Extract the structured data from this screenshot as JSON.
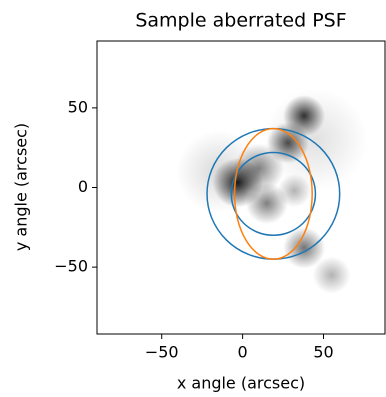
{
  "chart_data": {
    "type": "image",
    "title": "Sample aberrated PSF",
    "xlabel": "x angle (arcsec)",
    "ylabel": "y angle (arcsec)",
    "xlim": [
      -90,
      88
    ],
    "ylim": [
      -92,
      92
    ],
    "xticks": [
      {
        "value": -50,
        "label": "−50"
      },
      0,
      50
    ],
    "yticks": [
      {
        "value": -50,
        "label": "−50"
      },
      0,
      50
    ],
    "grid": false,
    "blobs": [
      {
        "x": -3,
        "y": 3,
        "size": 12,
        "intensity": 0.9
      },
      {
        "x": 38,
        "y": 45,
        "size": 10,
        "intensity": 0.8
      },
      {
        "x": 28,
        "y": 28,
        "size": 10,
        "intensity": 0.7
      },
      {
        "x": 10,
        "y": 12,
        "size": 12,
        "intensity": 0.5
      },
      {
        "x": 15,
        "y": -10,
        "size": 10,
        "intensity": 0.5
      },
      {
        "x": 32,
        "y": -2,
        "size": 8,
        "intensity": 0.3
      },
      {
        "x": 38,
        "y": -38,
        "size": 10,
        "intensity": 0.55
      },
      {
        "x": 55,
        "y": -55,
        "size": 9,
        "intensity": 0.3
      },
      {
        "x": -15,
        "y": 10,
        "size": 20,
        "intensity": 0.15
      },
      {
        "x": 45,
        "y": 30,
        "size": 25,
        "intensity": 0.12
      }
    ],
    "overlays": [
      {
        "shape": "circle",
        "x": 19,
        "y": -4,
        "rx": 41,
        "ry": 41,
        "color": "#1f77b4"
      },
      {
        "shape": "circle",
        "x": 19,
        "y": -4,
        "rx": 26,
        "ry": 26,
        "color": "#1f77b4"
      },
      {
        "shape": "ellipse",
        "x": 19,
        "y": -4,
        "rx": 24,
        "ry": 41,
        "color": "#ff7f0e"
      }
    ]
  }
}
